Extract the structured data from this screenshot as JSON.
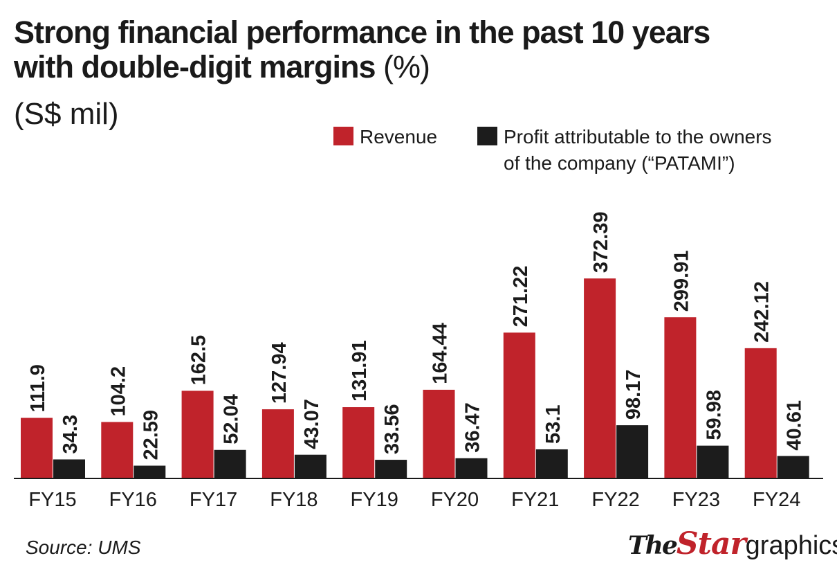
{
  "title": {
    "line1": "Strong financial performance in the past 10 years",
    "line2_bold": "with double-digit margins",
    "line2_light": "(%)"
  },
  "subtitle": "(S$ mil)",
  "legend": {
    "revenue": "Revenue",
    "patami_line1": "Profit attributable to the owners",
    "patami_line2": "of the company (“PATAMI”)"
  },
  "colors": {
    "revenue": "#c0232b",
    "patami": "#1c1c1c",
    "axis": "#1a1a1a"
  },
  "chart_data": {
    "type": "bar",
    "categories": [
      "FY15",
      "FY16",
      "FY17",
      "FY18",
      "FY19",
      "FY20",
      "FY21",
      "FY22",
      "FY23",
      "FY24"
    ],
    "series": [
      {
        "name": "Revenue",
        "values": [
          111.9,
          104.2,
          162.5,
          127.94,
          131.91,
          164.44,
          271.22,
          372.39,
          299.91,
          242.12
        ],
        "labels": [
          "111.9",
          "104.2",
          "162.5",
          "127.94",
          "131.91",
          "164.44",
          "271.22",
          "372.39",
          "299.91",
          "242.12"
        ]
      },
      {
        "name": "Profit attributable to the owners of the company (“PATAMI”)",
        "values": [
          34.3,
          22.59,
          52.04,
          43.07,
          33.56,
          36.47,
          53.1,
          98.17,
          59.98,
          40.61
        ],
        "labels": [
          "34.3",
          "22.59",
          "52.04",
          "43.07",
          "33.56",
          "36.47",
          "53.1",
          "98.17",
          "59.98",
          "40.61"
        ]
      }
    ],
    "ylim": [
      0,
      380
    ],
    "grid": false,
    "legend_position": "top-right"
  },
  "source": "Source: UMS",
  "logo": {
    "the": "The",
    "star": "Star",
    "graphics": "graphics"
  }
}
